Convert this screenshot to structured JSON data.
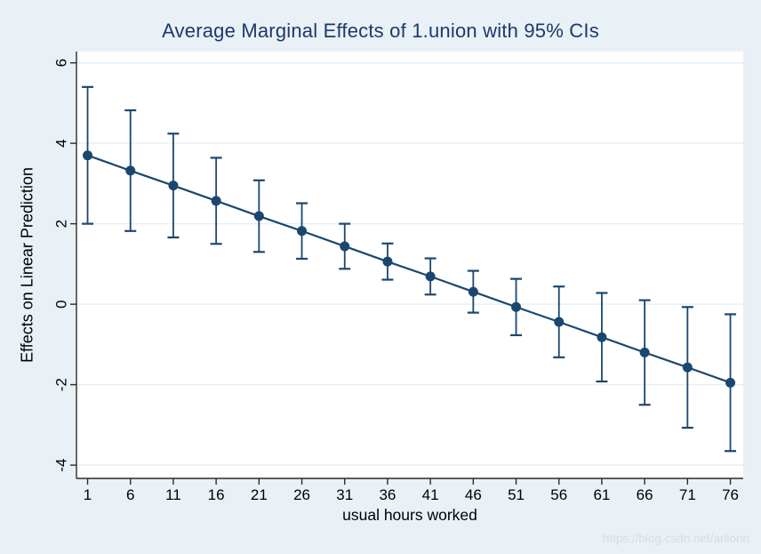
{
  "page": {
    "watermark_text": "https://blog.csdn.net/arlionn",
    "background_color": "#e9f0f6"
  },
  "chart_data": {
    "type": "line",
    "subtype": "point-estimates-with-error-bars",
    "title": "Average Marginal Effects of 1.union with 95% CIs",
    "xlabel": "usual hours worked",
    "ylabel": "Effects on Linear Prediction",
    "ci_level": "95%",
    "x": [
      1,
      6,
      11,
      16,
      21,
      26,
      31,
      36,
      41,
      46,
      51,
      56,
      61,
      66,
      71,
      76
    ],
    "series": [
      {
        "name": "Average marginal effect of 1.union",
        "values": [
          3.7,
          3.32,
          2.95,
          2.57,
          2.19,
          1.82,
          1.44,
          1.06,
          0.69,
          0.31,
          -0.07,
          -0.44,
          -0.82,
          -1.2,
          -1.57,
          -1.95
        ],
        "ci_lower": [
          2.0,
          1.82,
          1.66,
          1.5,
          1.3,
          1.13,
          0.88,
          0.61,
          0.24,
          -0.21,
          -0.77,
          -1.32,
          -1.92,
          -2.5,
          -3.07,
          -3.65
        ],
        "ci_upper": [
          5.4,
          4.82,
          4.24,
          3.64,
          3.08,
          2.51,
          2.0,
          1.51,
          1.14,
          0.83,
          0.63,
          0.44,
          0.28,
          0.1,
          -0.07,
          -0.25
        ]
      }
    ],
    "yticks": [
      -4,
      -2,
      0,
      2,
      4,
      6
    ],
    "xticks": [
      1,
      6,
      11,
      16,
      21,
      26,
      31,
      36,
      41,
      46,
      51,
      56,
      61,
      66,
      71,
      76
    ],
    "xlim": [
      -0.3,
      77.5
    ],
    "ylim": [
      -4.33,
      6.28
    ],
    "grid": "horizontal-only",
    "legend": "none",
    "marker": "filled-circle",
    "colors": {
      "data": "#1a476f",
      "title": "#1b3a6b",
      "axis": "#2b2b2b",
      "tick_label": "#000000",
      "gridline": "#e4eef6",
      "background": "#e9f0f6",
      "plot_background": "#ffffff",
      "watermark": "#d6dce2"
    }
  }
}
